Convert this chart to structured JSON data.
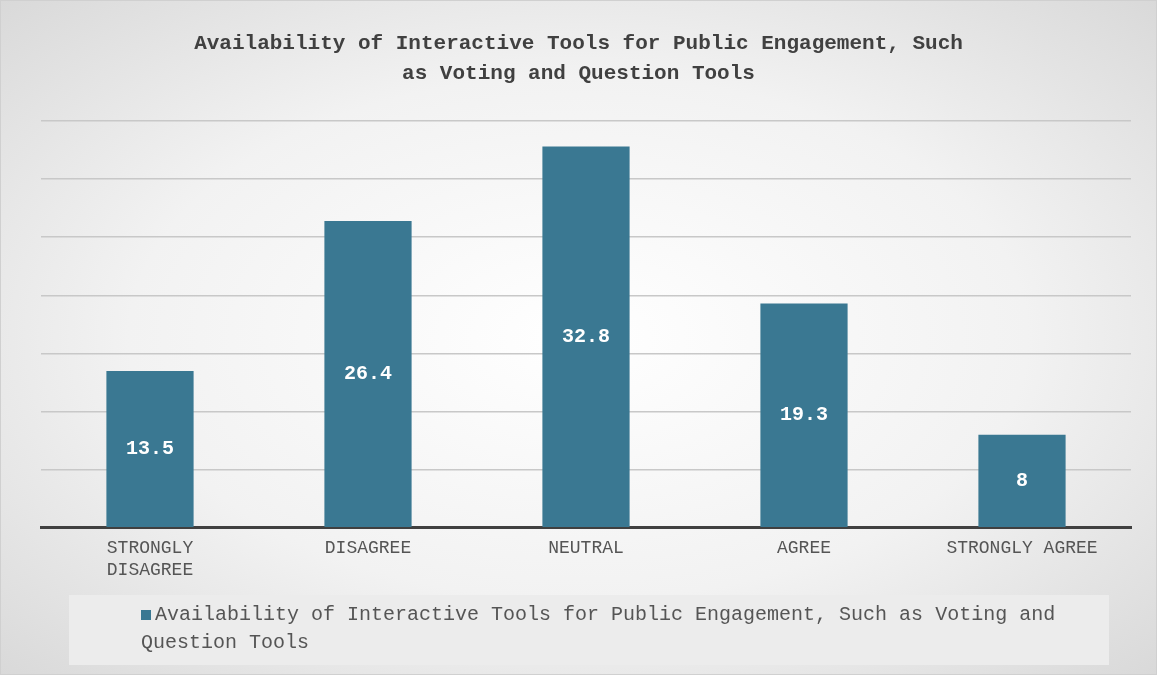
{
  "chart_data": {
    "type": "bar",
    "title": "Availability of Interactive Tools for Public Engagement, Such as Voting and Question Tools",
    "categories": [
      "STRONGLY DISAGREE",
      "DISAGREE",
      "NEUTRAL",
      "AGREE",
      "STRONGLY AGREE"
    ],
    "series": [
      {
        "name": "Availability of Interactive Tools for Public Engagement, Such as Voting and Question Tools",
        "color": "#3a7892",
        "values": [
          13.5,
          26.4,
          32.8,
          19.3,
          8
        ]
      }
    ],
    "ylim": [
      0,
      35
    ],
    "yticks": [
      0,
      5,
      10,
      15,
      20,
      25,
      30,
      35
    ],
    "tick_labels": "x",
    "grid": "y",
    "legend": "bottom",
    "data_labels": true
  }
}
